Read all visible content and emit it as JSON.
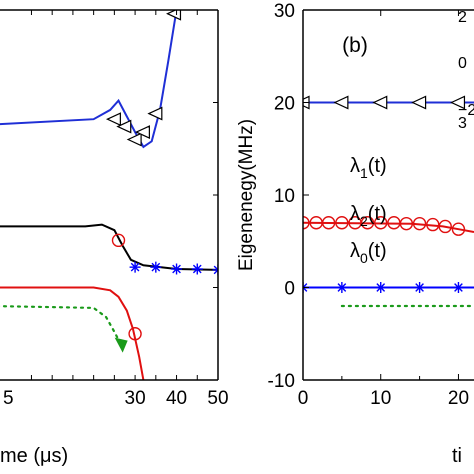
{
  "chart_data": [
    {
      "panel": "left",
      "type": "line",
      "xlabel": "me (μs)",
      "xlim": [
        -5,
        50
      ],
      "ylim": [
        -10,
        30
      ],
      "x_ticks": [
        "30",
        "40",
        "50"
      ],
      "x_ticks_partial": [
        "5"
      ],
      "series": [
        {
          "name": "",
          "color": "#1f2fd6",
          "marker": "triangle-left",
          "line": [
            [
              -5,
              17.6
            ],
            [
              20,
              18.2
            ],
            [
              24,
              19.2
            ],
            [
              26,
              20.2
            ],
            [
              28,
              18.5
            ],
            [
              30,
              16.8
            ],
            [
              32,
              15.2
            ],
            [
              34,
              15.8
            ],
            [
              36,
              19.2
            ],
            [
              38,
              24.5
            ],
            [
              40,
              30
            ]
          ],
          "markers": [
            [
              25,
              18.2
            ],
            [
              27.5,
              17.4
            ],
            [
              30,
              16.0
            ],
            [
              32,
              16.8
            ],
            [
              35,
              18.8
            ],
            [
              39.5,
              29.6
            ]
          ]
        },
        {
          "name": "",
          "color": "#000000",
          "marker": "none",
          "line": [
            [
              -5,
              6.6
            ],
            [
              18,
              6.6
            ],
            [
              22,
              6.8
            ],
            [
              25,
              6.2
            ],
            [
              27,
              4.5
            ],
            [
              29,
              3.0
            ],
            [
              32,
              2.4
            ],
            [
              36,
              2.2
            ],
            [
              40,
              2.0
            ],
            [
              50,
              1.9
            ]
          ]
        },
        {
          "name": "",
          "color": "#0000ff",
          "marker": "asterisk",
          "line": [],
          "markers": [
            [
              30,
              2.2
            ],
            [
              35,
              2.2
            ],
            [
              40,
              2.0
            ],
            [
              45,
              2.0
            ],
            [
              50,
              1.9
            ]
          ]
        },
        {
          "name": "",
          "color": "#e01010",
          "marker": "circle",
          "line": [
            [
              -5,
              0
            ],
            [
              20,
              0
            ],
            [
              24,
              -0.3
            ],
            [
              26,
              -1.0
            ],
            [
              28,
              -2.5
            ],
            [
              29.5,
              -4.5
            ],
            [
              31,
              -7.5
            ],
            [
              32,
              -10
            ]
          ],
          "markers": [
            [
              26,
              5.1
            ],
            [
              30,
              -5.0
            ]
          ]
        },
        {
          "name": "",
          "color": "#1a9a1a",
          "style": "dotted",
          "marker": "arrow",
          "line": [
            [
              -5,
              -2.0
            ],
            [
              20,
              -2.2
            ],
            [
              23,
              -3.2
            ],
            [
              25,
              -4.8
            ],
            [
              27,
              -6.5
            ]
          ]
        }
      ]
    },
    {
      "panel": "right",
      "type": "line",
      "panel_label": "(b)",
      "xlabel": "ti",
      "ylabel": "Eigenenegy(MHz)",
      "xlim": [
        0,
        22
      ],
      "ylim": [
        -10,
        30
      ],
      "x_ticks": [
        "0",
        "10",
        "20"
      ],
      "y_ticks": [
        "-10",
        "0",
        "10",
        "20",
        "30"
      ],
      "series": [
        {
          "name": "λ2(t)",
          "color": "#1f2fd6",
          "marker": "triangle-left",
          "line": [
            [
              0,
              20
            ],
            [
              20,
              20
            ],
            [
              22,
              20
            ]
          ],
          "markers": [
            [
              0,
              20
            ],
            [
              5,
              20
            ],
            [
              10,
              20
            ],
            [
              15,
              20
            ],
            [
              20,
              20
            ]
          ]
        },
        {
          "name": "λ1(t)",
          "color": "#e01010",
          "marker": "circle",
          "line": [
            [
              0,
              7.0
            ],
            [
              14,
              6.9
            ],
            [
              18,
              6.6
            ],
            [
              20,
              6.3
            ],
            [
              22,
              6.0
            ]
          ],
          "markers": [
            [
              0,
              7
            ],
            [
              1.7,
              7
            ],
            [
              3.3,
              7
            ],
            [
              5,
              7
            ],
            [
              6.7,
              7
            ],
            [
              8.3,
              7
            ],
            [
              10,
              7
            ],
            [
              11.7,
              7
            ],
            [
              13.3,
              6.9
            ],
            [
              15,
              6.9
            ],
            [
              16.7,
              6.8
            ],
            [
              18.3,
              6.6
            ],
            [
              20,
              6.3
            ]
          ]
        },
        {
          "name": "λ0(t)",
          "color": "#0000ff",
          "marker": "asterisk",
          "line": [
            [
              0,
              0
            ],
            [
              22,
              0
            ]
          ],
          "markers": [
            [
              0,
              0
            ],
            [
              5,
              0
            ],
            [
              10,
              0
            ],
            [
              15,
              0
            ],
            [
              20,
              0
            ]
          ]
        },
        {
          "name": "",
          "color": "#1a9a1a",
          "style": "dotted",
          "line": [
            [
              5,
              -2
            ],
            [
              22,
              -2
            ]
          ]
        }
      ],
      "inset_ticks": [
        "2",
        "0",
        "−2",
        "3"
      ]
    }
  ]
}
